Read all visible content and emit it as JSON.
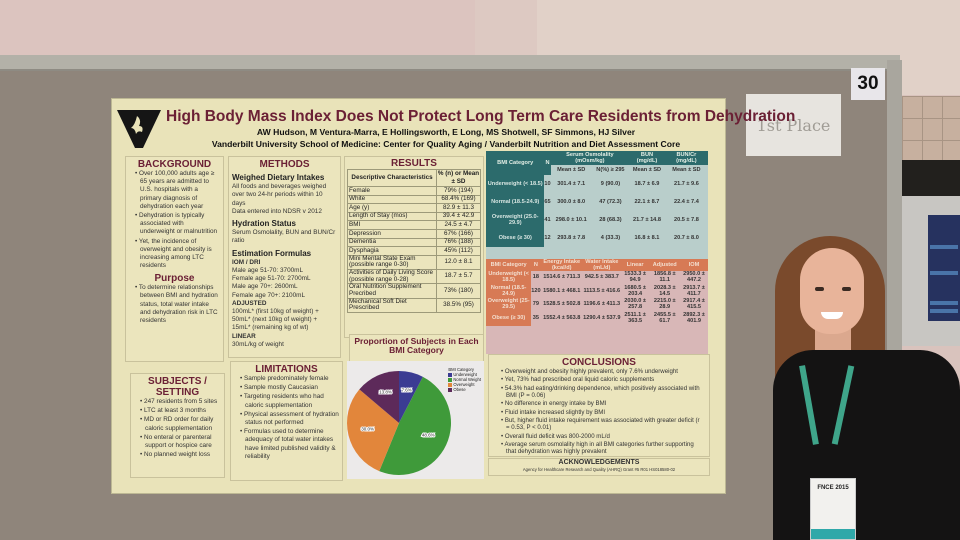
{
  "scene": {
    "booth_number": "30",
    "place_card": "1st Place"
  },
  "poster": {
    "title": "High Body Mass Index Does Not Protect Long Term Care Residents from Dehydration",
    "authors": "AW Hudson, M Ventura-Marra, E Hollingsworth, E Long, MS Shotwell, SF Simmons, HJ Silver",
    "affiliation": "Vanderbilt University School of Medicine: Center for Quality Aging / Vanderbilt Nutrition and Diet Assessment Core",
    "background": {
      "heading": "BACKGROUND",
      "items": [
        "Over 100,000 adults age ≥ 65 years are admitted to U.S. hospitals with a primary diagnosis of dehydration each year",
        "Dehydration is typically associated with underweight or malnutrition",
        "Yet, the incidence of overweight and obesity is increasing among LTC residents"
      ]
    },
    "purpose": {
      "heading": "Purpose",
      "items": [
        "To determine relationships between BMI and hydration status, total water intake and dehydration risk in LTC residents"
      ]
    },
    "subjects": {
      "heading": "SUBJECTS / SETTING",
      "items": [
        "247 residents from 5 sites",
        "LTC at least 3 months",
        "MD or RD order for daily caloric supplementation",
        "No enteral or parenteral support or hospice care",
        "No planned weight loss"
      ]
    },
    "methods": {
      "heading": "METHODS",
      "weighed_heading": "Weighed Dietary Intakes",
      "weighed": [
        "All foods and beverages weighed over two 24-hr periods within 10 days",
        "Data entered into NDSR v 2012"
      ],
      "hydration_heading": "Hydration Status",
      "hydration": [
        "Serum Osmolality, BUN and BUN/Cr ratio"
      ],
      "formulas_heading": "Estimation Formulas",
      "iom_heading": "IOM / DRI",
      "iom": [
        "Male age 51-70: 3700mL",
        "Female age 51-70: 2700mL",
        "Male age 70+: 2600mL",
        "Female age 70+: 2100mL"
      ],
      "adjusted_heading": "ADJUSTED",
      "adjusted": "100mL* (first 10kg of weight) + 50mL* (next 10kg of weight) + 15mL* (remaining kg of wt)",
      "linear_heading": "LINEAR",
      "linear": "30mL/kg of weight"
    },
    "limitations": {
      "heading": "LIMITATIONS",
      "items": [
        "Sample predominately female",
        "Sample mostly Caucasian",
        "Targeting residents who had caloric supplementation",
        "Physical assessment of hydration status not performed",
        "Formulas used to determine adequacy of total water intakes have limited published validity & reliability"
      ]
    },
    "results": {
      "heading": "RESULTS",
      "col1": "Descriptive Characteristics",
      "col2": "% (n) or Mean ± SD",
      "rows": [
        [
          "Female",
          "79% (194)"
        ],
        [
          "White",
          "68.4% (169)"
        ],
        [
          "Age (y)",
          "82.9 ± 11.3"
        ],
        [
          "Length of Stay (mos)",
          "39.4 ± 42.9"
        ],
        [
          "BMI",
          "24.5 ± 4.7"
        ],
        [
          "Depression",
          "67% (166)"
        ],
        [
          "Dementia",
          "76% (188)"
        ],
        [
          "Dysphagia",
          "45% (112)"
        ],
        [
          "Mini Mental State Exam (possible range 0-30)",
          "12.0 ± 8.1"
        ],
        [
          "Activities of Daily Living Score (possible range 0-28)",
          "18.7 ± 5.7"
        ],
        [
          "Oral Nutrition Supplement Precribed",
          "73% (180)"
        ],
        [
          "Mechanical Soft Diet Prescribed",
          "38.5% (95)"
        ]
      ]
    },
    "pie": {
      "title": "Proportion of Subjects in Each BMI Category",
      "legend_title": "BMI Category",
      "slices": [
        {
          "label": "Underweight",
          "value": 7.6,
          "text": "7.6%",
          "color": "#3b3c93"
        },
        {
          "label": "Normal Weight",
          "value": 48.6,
          "text": "48.6%",
          "color": "#3f9a3a"
        },
        {
          "label": "Overweight",
          "value": 30.0,
          "text": "30.0%",
          "color": "#e2863b"
        },
        {
          "label": "Obese",
          "value": 13.8,
          "text": "13.8%",
          "color": "#5d2a5a"
        }
      ]
    },
    "osm_table": {
      "headers": [
        "BMI Category",
        "N",
        "Serum Osmolality (mOsm/kg)",
        "BUN (mg/dL)",
        "BUN/Cr (mg/dL)"
      ],
      "sub": [
        "Mean ± SD",
        "N(%) ≥ 295",
        "Mean ± SD",
        "Mean ± SD"
      ],
      "rows": [
        [
          "Underweight (< 18.5)",
          "10",
          "301.4 ± 7.1",
          "9 (90.0)",
          "18.7 ± 6.9",
          "21.7 ± 9.6"
        ],
        [
          "Normal (18.5-24.9)",
          "65",
          "300.0 ± 8.0",
          "47 (72.3)",
          "22.1 ± 8.7",
          "22.4 ± 7.4"
        ],
        [
          "Overweight (25.0-29.9)",
          "41",
          "298.0 ± 10.1",
          "28 (68.3)",
          "21.7 ± 14.8",
          "20.5 ± 7.8"
        ],
        [
          "Obese (≥ 30)",
          "12",
          "293.8 ± 7.8",
          "4 (33.3)",
          "16.8 ± 8.1",
          "20.7 ± 8.0"
        ]
      ]
    },
    "energy_table": {
      "headers": [
        "BMI Category",
        "N",
        "Energy Intake (kcal/d)",
        "Water Intake (mL/d)",
        "Linear",
        "Adjusted",
        "IOM"
      ],
      "rows": [
        [
          "Underweight (< 18.5)",
          "18",
          "1514.6 ± 711.3",
          "942.5 ± 383.7",
          "1533.3 ± 94.9",
          "1856.8 ± 11.1",
          "2950.0 ± 447.2"
        ],
        [
          "Normal (18.5-24.9)",
          "120",
          "1580.1 ± 468.1",
          "1113.5 ± 416.6",
          "1680.5 ± 203.4",
          "2028.3 ± 14.5",
          "2913.7 ± 411.7"
        ],
        [
          "Overweight (25-29.5)",
          "79",
          "1528.5 ± 502.8",
          "1196.6 ± 411.3",
          "2030.0 ± 257.8",
          "2215.0 ± 28.9",
          "2917.4 ± 415.5"
        ],
        [
          "Obese (≥ 30)",
          "35",
          "1552.4 ± 563.8",
          "1290.4 ± 537.9",
          "2511.1 ± 363.5",
          "2455.5 ± 61.7",
          "2892.3 ± 401.9"
        ]
      ]
    },
    "conclusions": {
      "heading": "CONCLUSIONS",
      "items": [
        "Overweight and obesity highly prevalent, only 7.6% underweight",
        "Yet, 73% had prescribed oral liquid caloric supplements",
        "54.3% had eating/drinking dependence, which positively associated with BMI (P = 0.06)",
        "No difference in energy intake by BMI",
        "Fluid intake increased slightly by BMI",
        "But, higher fluid intake requirement was associated with greater deficit (r = 0.53, P < 0.01)",
        "Overall fluid deficit was 800-2000 mL/d",
        "Average serum osmolality high in all BMI categories further supporting that dehydration was highly prevalent"
      ]
    },
    "acknowledgements": {
      "heading": "ACKNOWLEDGEMENTS",
      "text": "Agency for Healthcare Research and Quality (AHRQ) Grant #5 R01 HS018580-02"
    }
  },
  "badge": {
    "event": "FNCE 2015"
  }
}
